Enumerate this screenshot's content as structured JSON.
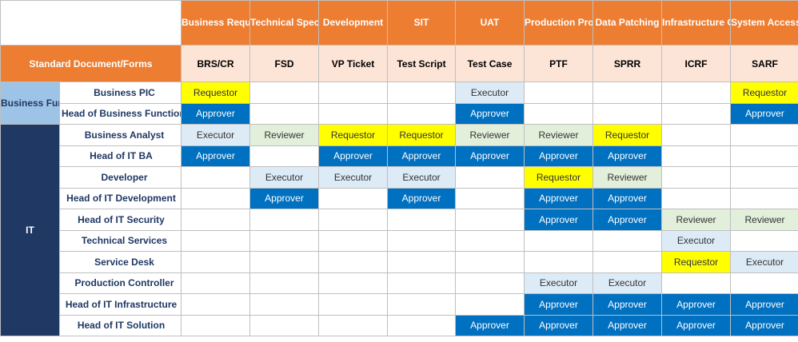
{
  "header": {
    "standard_label": "Standard Document/Forms",
    "phases": [
      "Business Requirement",
      "Technical Specification",
      "Development",
      "SIT",
      "UAT",
      "Production Promotion",
      "Data Patching",
      "Infrastructure Change",
      "System Access"
    ],
    "documents": [
      "BRS/CR",
      "FSD",
      "VP Ticket",
      "Test Script",
      "Test Case",
      "PTF",
      "SPRR",
      "ICRF",
      "SARF"
    ]
  },
  "groups": [
    {
      "label": "Business Function",
      "rows": 2
    },
    {
      "label": "IT",
      "rows": 10
    }
  ],
  "rows": [
    {
      "role": "Business PIC",
      "indent": true,
      "cells": [
        "Requestor",
        "",
        "",
        "",
        "Executor",
        "",
        "",
        "",
        "Requestor"
      ]
    },
    {
      "role": "Head of Business Function",
      "indent": false,
      "cells": [
        "Approver",
        "",
        "",
        "",
        "Approver",
        "",
        "",
        "",
        "Approver"
      ]
    },
    {
      "role": "Business Analyst",
      "indent": true,
      "cells": [
        "Executor",
        "Reviewer",
        "Requestor",
        "Requestor",
        "Reviewer",
        "Reviewer",
        "Requestor",
        "",
        ""
      ]
    },
    {
      "role": "Head of IT BA",
      "indent": false,
      "cells": [
        "Approver",
        "",
        "Approver",
        "Approver",
        "Approver",
        "Approver",
        "Approver",
        "",
        ""
      ]
    },
    {
      "role": "Developer",
      "indent": true,
      "cells": [
        "",
        "Executor",
        "Executor",
        "Executor",
        "",
        "Requestor",
        "Reviewer",
        "",
        ""
      ]
    },
    {
      "role": "Head of IT Development",
      "indent": false,
      "cells": [
        "",
        "Approver",
        "",
        "Approver",
        "",
        "Approver",
        "Approver",
        "",
        ""
      ]
    },
    {
      "role": "Head of IT Security",
      "indent": false,
      "cells": [
        "",
        "",
        "",
        "",
        "",
        "Approver",
        "Approver",
        "Reviewer",
        "Reviewer"
      ]
    },
    {
      "role": "Technical Services",
      "indent": true,
      "cells": [
        "",
        "",
        "",
        "",
        "",
        "",
        "",
        "Executor",
        ""
      ]
    },
    {
      "role": "Service Desk",
      "indent": true,
      "cells": [
        "",
        "",
        "",
        "",
        "",
        "",
        "",
        "Requestor",
        "Executor"
      ]
    },
    {
      "role": "Production Controller",
      "indent": true,
      "cells": [
        "",
        "",
        "",
        "",
        "",
        "Executor",
        "Executor",
        "",
        ""
      ]
    },
    {
      "role": "Head of IT Infrastructure",
      "indent": false,
      "cells": [
        "",
        "",
        "",
        "",
        "",
        "Approver",
        "Approver",
        "Approver",
        "Approver"
      ]
    },
    {
      "role": "Head of IT Solution",
      "indent": false,
      "cells": [
        "",
        "",
        "",
        "",
        "Approver",
        "Approver",
        "Approver",
        "Approver",
        "Approver"
      ]
    }
  ],
  "colors": {
    "header_orange": "#ED7D31",
    "doc_peach": "#FCE4D6",
    "requestor": "#FFFF00",
    "executor": "#DDEBF7",
    "reviewer": "#E2EFDA",
    "approver": "#0070C0",
    "it_navy": "#1F3864",
    "business_blue": "#9DC3E6"
  }
}
